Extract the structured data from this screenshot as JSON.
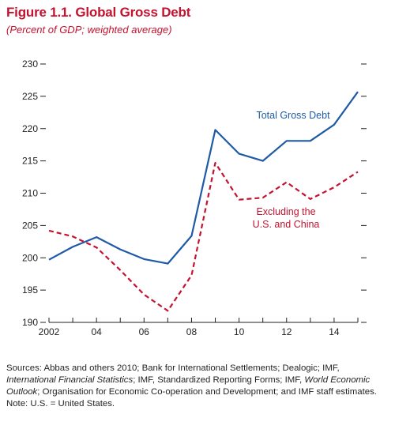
{
  "figure": {
    "title": "Figure 1.1. Global Gross Debt",
    "subtitle": "(Percent of GDP; weighted average)"
  },
  "chart_data": {
    "type": "line",
    "title": "Figure 1.1. Global Gross Debt",
    "subtitle": "(Percent of GDP; weighted average)",
    "xlabel": "",
    "ylabel": "",
    "xlim": [
      2002,
      2015
    ],
    "ylim": [
      190,
      230
    ],
    "x_ticks": [
      2002,
      2004,
      2006,
      2008,
      2010,
      2012,
      2014
    ],
    "x_tick_labels": [
      "2002",
      "04",
      "06",
      "08",
      "10",
      "12",
      "14"
    ],
    "y_ticks": [
      190,
      195,
      200,
      205,
      210,
      215,
      220,
      225,
      230
    ],
    "grid": false,
    "x": [
      2002,
      2003,
      2004,
      2005,
      2006,
      2007,
      2008,
      2009,
      2010,
      2011,
      2012,
      2013,
      2014,
      2015
    ],
    "series": [
      {
        "name": "Total Gross Debt",
        "label_lines": [
          "Total Gross Debt"
        ],
        "color": "#1f5aa6",
        "style": "solid",
        "values": [
          199.7,
          201.7,
          203.2,
          201.3,
          199.8,
          199.1,
          203.4,
          219.8,
          216.1,
          215.0,
          218.1,
          218.1,
          220.6,
          225.7
        ]
      },
      {
        "name": "Excluding the U.S. and China",
        "label_lines": [
          "Excluding the",
          "U.S. and China"
        ],
        "color": "#c4122f",
        "style": "dashed",
        "values": [
          204.2,
          203.3,
          201.6,
          198.1,
          194.3,
          191.8,
          197.3,
          214.7,
          209.0,
          209.3,
          211.7,
          209.1,
          210.9,
          213.3
        ]
      }
    ]
  },
  "notes": {
    "sources_prefix": "Sources: Abbas and others 2010; Bank for International Settlements; Dealogic; IMF, ",
    "sources_ifs": "International Financial Statistics",
    "sources_mid": "; IMF, Standardized Reporting Forms; IMF, ",
    "sources_weo": "World Economic Outlook",
    "sources_suffix": "; Organisation for Economic Co-operation and Development; and IMF staff estimates.",
    "note": "Note: U.S. = United States."
  }
}
